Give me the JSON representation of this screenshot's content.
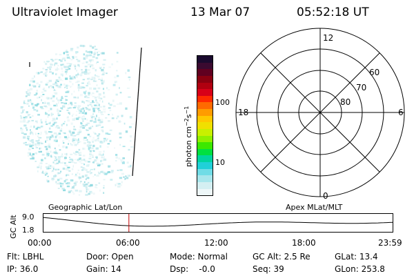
{
  "header": {
    "title": "Ultraviolet Imager",
    "date": "13 Mar 07",
    "time": "05:52:18 UT"
  },
  "colorbar": {
    "unit_label": "photon cm",
    "unit_exp1": "−2",
    "unit_mid": "s",
    "unit_exp2": "−1",
    "ticks": [
      "100",
      "10"
    ],
    "colors": [
      "#1a0a2e",
      "#3a0a30",
      "#600020",
      "#8a0010",
      "#b00010",
      "#d80018",
      "#ff2a00",
      "#ff6a00",
      "#ff9c00",
      "#ffc800",
      "#f0e000",
      "#c8f000",
      "#90f000",
      "#3ce800",
      "#00e040",
      "#00d4a0",
      "#20d0d8",
      "#70dce6",
      "#a8e6ec",
      "#d4eff2",
      "#eef7f8"
    ]
  },
  "polar_plot": {
    "labels": {
      "top": "12",
      "left": "18",
      "right": "6",
      "bottom": "0"
    },
    "rings": [
      "60",
      "70",
      "80"
    ]
  },
  "timeline": {
    "axis_label": "GC Alt",
    "left_label": "Geographic Lat/Lon",
    "right_label": "Apex MLat/MLT",
    "y_max": "9.0",
    "y_min": "1.8",
    "x_ticks": [
      "00:00",
      "06:00",
      "12:00",
      "18:00",
      "23:59"
    ],
    "marker_time_hours": 5.87
  },
  "status": {
    "flt": "Flt: LBHL",
    "ip": "IP: 36.0",
    "door": "Door: Open",
    "gain": "Gain: 14",
    "mode": "Mode: Normal",
    "dsp": "Dsp:    -0.0",
    "gcalt": "GC Alt: 2.5 Re",
    "seq": "Seq: 39",
    "glat": "GLat: 13.4",
    "glon": "GLon: 253.8"
  },
  "colors": {
    "marker": "#c00000",
    "speckle": "#7fd6dc"
  }
}
